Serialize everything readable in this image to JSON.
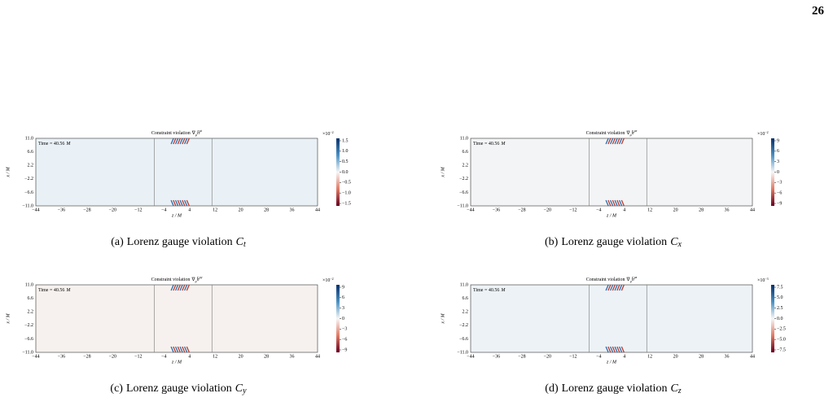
{
  "page_number": "26",
  "shared": {
    "time_label": "Time = 40.56",
    "time_unit": "M",
    "y_ticks": [
      "11.0",
      "6.6",
      "2.2",
      "−2.2",
      "−6.6",
      "−11.0"
    ],
    "x_ticks": [
      "−44",
      "−36",
      "−28",
      "−20",
      "−12",
      "−4",
      "4",
      "12",
      "20",
      "28",
      "36",
      "44"
    ],
    "x_axis_label": "z / M",
    "y_axis_label": "x / M",
    "title_text": "Constraint violation",
    "operator": "∇",
    "operator_sub": "μ",
    "field": "h̄",
    "caption_text": "Lorenz gauge violation",
    "caption_symbol": "C"
  },
  "panels": [
    {
      "field_sup": "μt",
      "exponent_base": "×10",
      "exponent": "−2",
      "colorbar_ticks": [
        "1.5",
        "1.0",
        "0.5",
        "0.0",
        "−0.5",
        "−1.0",
        "−1.5"
      ],
      "caption_label": "(a)",
      "caption_sub": "t"
    },
    {
      "field_sup": "μx",
      "exponent_base": "×10",
      "exponent": "−2",
      "colorbar_ticks": [
        "9",
        "6",
        "3",
        "0",
        "−3",
        "−6",
        "−9"
      ],
      "caption_label": "(b)",
      "caption_sub": "x"
    },
    {
      "field_sup": "μy",
      "exponent_base": "×10",
      "exponent": "−2",
      "colorbar_ticks": [
        "9",
        "6",
        "3",
        "0",
        "−3",
        "−6",
        "−9"
      ],
      "caption_label": "(c)",
      "caption_sub": "y"
    },
    {
      "field_sup": "μz",
      "exponent_base": "×10",
      "exponent": "−3",
      "colorbar_ticks": [
        "7.5",
        "5.0",
        "2.5",
        "0.0",
        "−2.5",
        "−5.0",
        "−7.5"
      ],
      "caption_label": "(d)",
      "caption_sub": "z"
    }
  ]
}
